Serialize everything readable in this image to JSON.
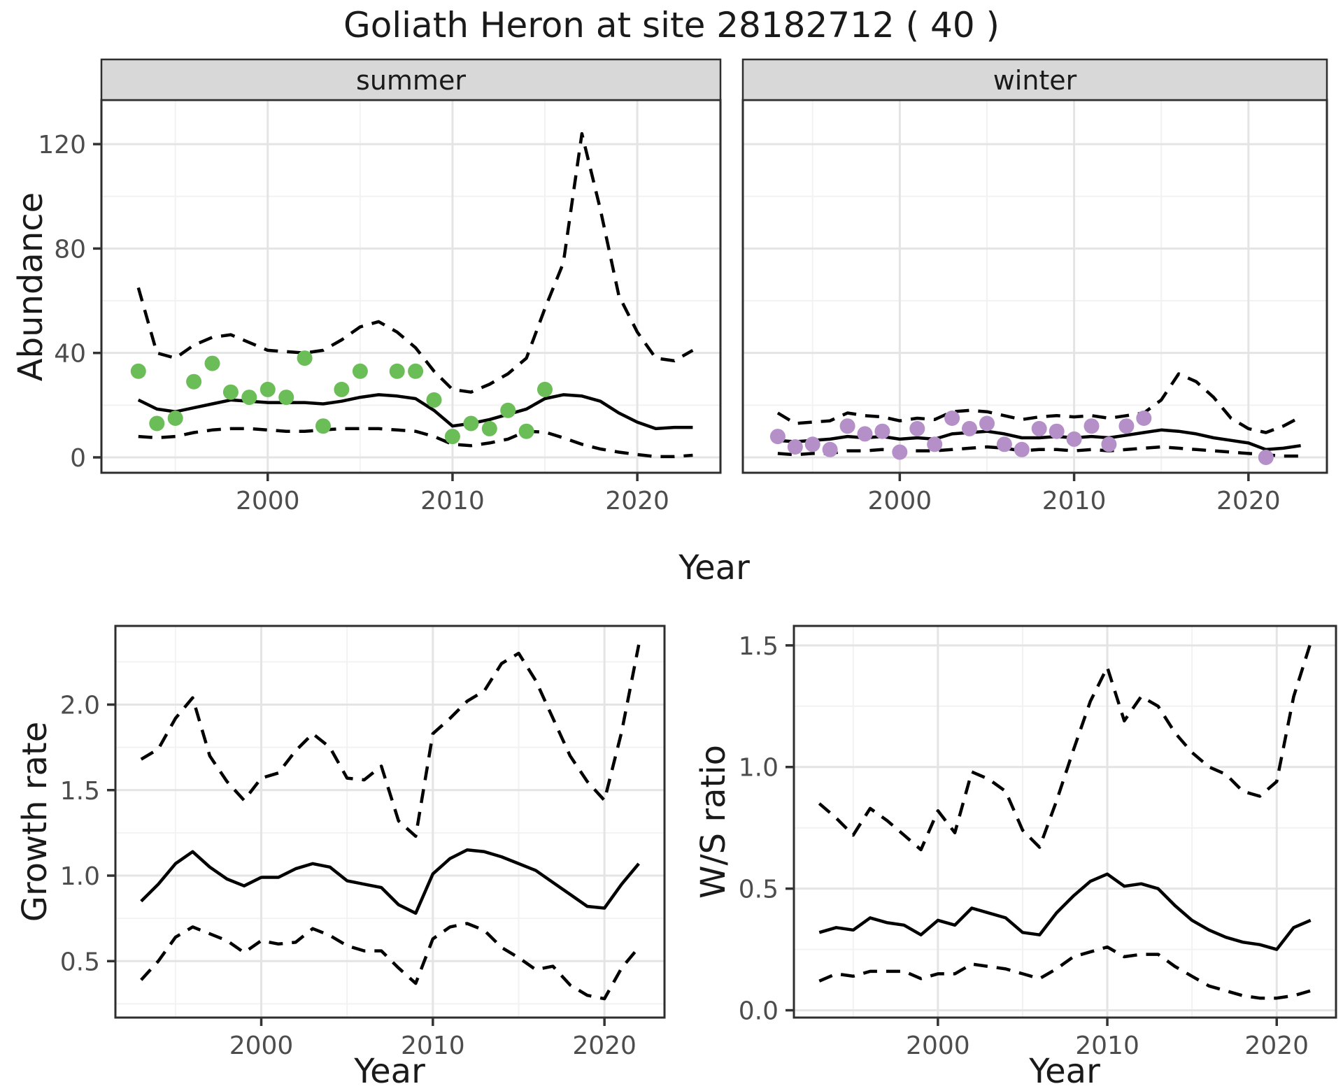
{
  "title": "Goliath Heron at site 28182712 ( 40 )",
  "axis_labels": {
    "abundance": "Abundance",
    "year_top": "Year",
    "growth_rate": "Growth rate",
    "ws_ratio": "W/S ratio",
    "year_bottom_left": "Year",
    "year_bottom_right": "Year"
  },
  "colors": {
    "summer_point": "#6BBD57",
    "winter_point": "#B48FC8",
    "line": "#000000",
    "grid_major": "#E4E4E4",
    "grid_minor": "#F2F2F2",
    "panel_border": "#2E2E2E",
    "strip_bg": "#D8D8D8",
    "tick_mark": "#333333",
    "tick_text": "#4D4D4D"
  },
  "chart_data": [
    {
      "id": "summer",
      "type": "line",
      "strip_label": "summer",
      "x_domain": [
        1991,
        2024.5
      ],
      "y_domain": [
        -5.9,
        136.9
      ],
      "x_ticks": [
        2000,
        2010,
        2020
      ],
      "x_tick_labels": [
        "2000",
        "2010",
        "2020"
      ],
      "x_minor": [
        1995,
        2005,
        2015
      ],
      "y_ticks": [
        0,
        40,
        80,
        120
      ],
      "y_tick_labels": [
        "0",
        "40",
        "80",
        "120"
      ],
      "y_minor": [
        20,
        60,
        100
      ],
      "x": [
        1993,
        1994,
        1995,
        1996,
        1997,
        1998,
        1999,
        2000,
        2001,
        2002,
        2003,
        2004,
        2005,
        2006,
        2007,
        2008,
        2009,
        2010,
        2011,
        2012,
        2013,
        2014,
        2015,
        2016,
        2017,
        2018,
        2019,
        2020,
        2021,
        2022,
        2023
      ],
      "series": [
        {
          "name": "mean",
          "style": "solid",
          "values": [
            22,
            18.5,
            17.5,
            19,
            20.5,
            22,
            21.5,
            21,
            21,
            21,
            20.5,
            21.5,
            23,
            24,
            23.5,
            22.5,
            18,
            12,
            13,
            14.5,
            16.5,
            18.5,
            22.5,
            24,
            23.5,
            21.5,
            17,
            13.5,
            11,
            11.5,
            11.5
          ]
        },
        {
          "name": "ci_upper",
          "style": "dashed",
          "values": [
            65,
            40,
            38,
            43,
            46,
            47,
            44,
            41,
            40.5,
            40,
            41,
            45,
            50,
            52,
            48,
            42,
            33,
            26,
            25,
            28,
            32,
            38,
            57,
            74.5,
            124,
            95,
            62,
            48,
            38,
            37,
            41
          ]
        },
        {
          "name": "ci_lower",
          "style": "dashed",
          "values": [
            8,
            7.5,
            8,
            9.5,
            10.5,
            11,
            11,
            10.5,
            10,
            10,
            10.5,
            11,
            11,
            11,
            10.5,
            10,
            8,
            5,
            4.5,
            5.5,
            7,
            10,
            9.7,
            7.5,
            5,
            3.2,
            2,
            1.1,
            0.3,
            0.3,
            0.8
          ]
        }
      ],
      "points": {
        "color_key": "summer_point",
        "x": [
          1993,
          1994,
          1995,
          1996,
          1997,
          1998,
          1999,
          2000,
          2001,
          2002,
          2003,
          2004,
          2005,
          2007,
          2008,
          2009,
          2010,
          2011,
          2012,
          2013,
          2014,
          2015
        ],
        "y": [
          33,
          13,
          15,
          29,
          36,
          25,
          23,
          26,
          23,
          38,
          12,
          26,
          33,
          33,
          33,
          22,
          8,
          13,
          11,
          18,
          10,
          26
        ]
      }
    },
    {
      "id": "winter",
      "type": "line",
      "strip_label": "winter",
      "x_domain": [
        1991,
        2024.5
      ],
      "y_domain": [
        -5.9,
        136.9
      ],
      "x_ticks": [
        2000,
        2010,
        2020
      ],
      "x_tick_labels": [
        "2000",
        "2010",
        "2020"
      ],
      "x_minor": [
        1995,
        2005,
        2015
      ],
      "y_ticks": [
        0,
        40,
        80,
        120
      ],
      "y_tick_labels": [
        "0",
        "40",
        "80",
        "120"
      ],
      "y_minor": [
        20,
        60,
        100
      ],
      "x": [
        1993,
        1994,
        1995,
        1996,
        1997,
        1998,
        1999,
        2000,
        2001,
        2002,
        2003,
        2004,
        2005,
        2006,
        2007,
        2008,
        2009,
        2010,
        2011,
        2012,
        2013,
        2014,
        2015,
        2016,
        2017,
        2018,
        2019,
        2020,
        2021,
        2022,
        2023
      ],
      "series": [
        {
          "name": "mean",
          "style": "solid",
          "values": [
            6.5,
            6,
            6.5,
            7,
            8,
            7.5,
            8,
            7,
            7.5,
            7,
            9,
            9.5,
            10,
            9,
            7.5,
            7.5,
            8,
            7.5,
            8,
            7.5,
            8.5,
            9.5,
            10.5,
            10,
            9,
            7.5,
            6.5,
            5.5,
            3,
            3.5,
            4.5
          ]
        },
        {
          "name": "ci_upper",
          "style": "dashed",
          "values": [
            17,
            13,
            13.5,
            14,
            17,
            16,
            15.5,
            14,
            15,
            14.5,
            17.5,
            18,
            17.5,
            16,
            14.5,
            15.5,
            16,
            15.5,
            16,
            15,
            16,
            17,
            22,
            32,
            29,
            23,
            15,
            11,
            9.5,
            12,
            15.5
          ]
        },
        {
          "name": "ci_lower",
          "style": "dashed",
          "values": [
            1.5,
            1,
            1.5,
            1.5,
            2.5,
            2.5,
            3,
            2.5,
            2.5,
            2.5,
            3,
            3.5,
            4,
            3.5,
            2.5,
            3,
            3,
            2.5,
            3,
            2.5,
            3,
            3.5,
            4,
            3.5,
            3,
            2.5,
            2,
            1.5,
            1,
            0.5,
            0.5
          ]
        }
      ],
      "points": {
        "color_key": "winter_point",
        "x": [
          1993,
          1994,
          1995,
          1996,
          1997,
          1998,
          1999,
          2000,
          2001,
          2002,
          2003,
          2004,
          2005,
          2006,
          2007,
          2008,
          2009,
          2010,
          2011,
          2012,
          2013,
          2014,
          2021
        ],
        "y": [
          8,
          4,
          5,
          3,
          12,
          9,
          10,
          2,
          11,
          5,
          15,
          11,
          13,
          5,
          3,
          11,
          10,
          7,
          12,
          5,
          12,
          15,
          0
        ]
      }
    },
    {
      "id": "growth",
      "type": "line",
      "strip_label": null,
      "x_domain": [
        1991.5,
        2023.5
      ],
      "y_domain": [
        0.17,
        2.46
      ],
      "x_ticks": [
        2000,
        2010,
        2020
      ],
      "x_tick_labels": [
        "2000",
        "2010",
        "2020"
      ],
      "x_minor": [
        1995,
        2005,
        2015
      ],
      "y_ticks": [
        0.5,
        1.0,
        1.5,
        2.0
      ],
      "y_tick_labels": [
        "0.5",
        "1.0",
        "1.5",
        "2.0"
      ],
      "y_minor": [
        0.25,
        0.75,
        1.25,
        1.75,
        2.25
      ],
      "x": [
        1993,
        1994,
        1995,
        1996,
        1997,
        1998,
        1999,
        2000,
        2001,
        2002,
        2003,
        2004,
        2005,
        2006,
        2007,
        2008,
        2009,
        2010,
        2011,
        2012,
        2013,
        2014,
        2015,
        2016,
        2017,
        2018,
        2019,
        2020,
        2021,
        2022
      ],
      "series": [
        {
          "name": "mean",
          "style": "solid",
          "values": [
            0.85,
            0.95,
            1.07,
            1.14,
            1.05,
            0.98,
            0.94,
            0.99,
            0.99,
            1.04,
            1.07,
            1.05,
            0.97,
            0.95,
            0.93,
            0.83,
            0.78,
            1.01,
            1.1,
            1.15,
            1.14,
            1.11,
            1.07,
            1.03,
            0.96,
            0.89,
            0.82,
            0.81,
            0.95,
            1.07
          ]
        },
        {
          "name": "ci_upper",
          "style": "dashed",
          "values": [
            1.68,
            1.74,
            1.92,
            2.04,
            1.7,
            1.55,
            1.44,
            1.57,
            1.6,
            1.73,
            1.83,
            1.75,
            1.57,
            1.56,
            1.64,
            1.32,
            1.23,
            1.83,
            1.92,
            2.02,
            2.08,
            2.24,
            2.3,
            2.14,
            1.92,
            1.7,
            1.55,
            1.44,
            1.84,
            2.35
          ]
        },
        {
          "name": "ci_lower",
          "style": "dashed",
          "values": [
            0.39,
            0.5,
            0.64,
            0.7,
            0.66,
            0.62,
            0.55,
            0.62,
            0.6,
            0.61,
            0.69,
            0.65,
            0.59,
            0.56,
            0.56,
            0.46,
            0.37,
            0.63,
            0.7,
            0.72,
            0.68,
            0.58,
            0.52,
            0.45,
            0.47,
            0.36,
            0.3,
            0.28,
            0.46,
            0.58
          ]
        }
      ],
      "points": null
    },
    {
      "id": "ws",
      "type": "line",
      "strip_label": null,
      "x_domain": [
        1991.5,
        2023.5
      ],
      "y_domain": [
        -0.03,
        1.58
      ],
      "x_ticks": [
        2000,
        2010,
        2020
      ],
      "x_tick_labels": [
        "2000",
        "2010",
        "2020"
      ],
      "x_minor": [
        1995,
        2005,
        2015
      ],
      "y_ticks": [
        0.0,
        0.5,
        1.0,
        1.5
      ],
      "y_tick_labels": [
        "0.0",
        "0.5",
        "1.0",
        "1.5"
      ],
      "y_minor": [
        0.25,
        0.75,
        1.25
      ],
      "x": [
        1993,
        1994,
        1995,
        1996,
        1997,
        1998,
        1999,
        2000,
        2001,
        2002,
        2003,
        2004,
        2005,
        2006,
        2007,
        2008,
        2009,
        2010,
        2011,
        2012,
        2013,
        2014,
        2015,
        2016,
        2017,
        2018,
        2019,
        2020,
        2021,
        2022
      ],
      "series": [
        {
          "name": "mean",
          "style": "solid",
          "values": [
            0.32,
            0.34,
            0.33,
            0.38,
            0.36,
            0.35,
            0.31,
            0.37,
            0.35,
            0.42,
            0.4,
            0.38,
            0.32,
            0.31,
            0.4,
            0.47,
            0.53,
            0.56,
            0.51,
            0.52,
            0.5,
            0.43,
            0.37,
            0.33,
            0.3,
            0.28,
            0.27,
            0.25,
            0.34,
            0.37
          ]
        },
        {
          "name": "ci_upper",
          "style": "dashed",
          "values": [
            0.85,
            0.79,
            0.72,
            0.83,
            0.78,
            0.72,
            0.66,
            0.82,
            0.73,
            0.98,
            0.95,
            0.9,
            0.74,
            0.67,
            0.86,
            1.07,
            1.27,
            1.41,
            1.19,
            1.29,
            1.25,
            1.14,
            1.06,
            1.0,
            0.97,
            0.9,
            0.88,
            0.94,
            1.29,
            1.51
          ]
        },
        {
          "name": "ci_lower",
          "style": "dashed",
          "values": [
            0.12,
            0.15,
            0.14,
            0.16,
            0.16,
            0.16,
            0.13,
            0.15,
            0.15,
            0.19,
            0.18,
            0.17,
            0.15,
            0.13,
            0.17,
            0.22,
            0.24,
            0.26,
            0.22,
            0.23,
            0.23,
            0.18,
            0.14,
            0.1,
            0.08,
            0.06,
            0.05,
            0.05,
            0.06,
            0.08
          ]
        }
      ],
      "points": null
    }
  ]
}
